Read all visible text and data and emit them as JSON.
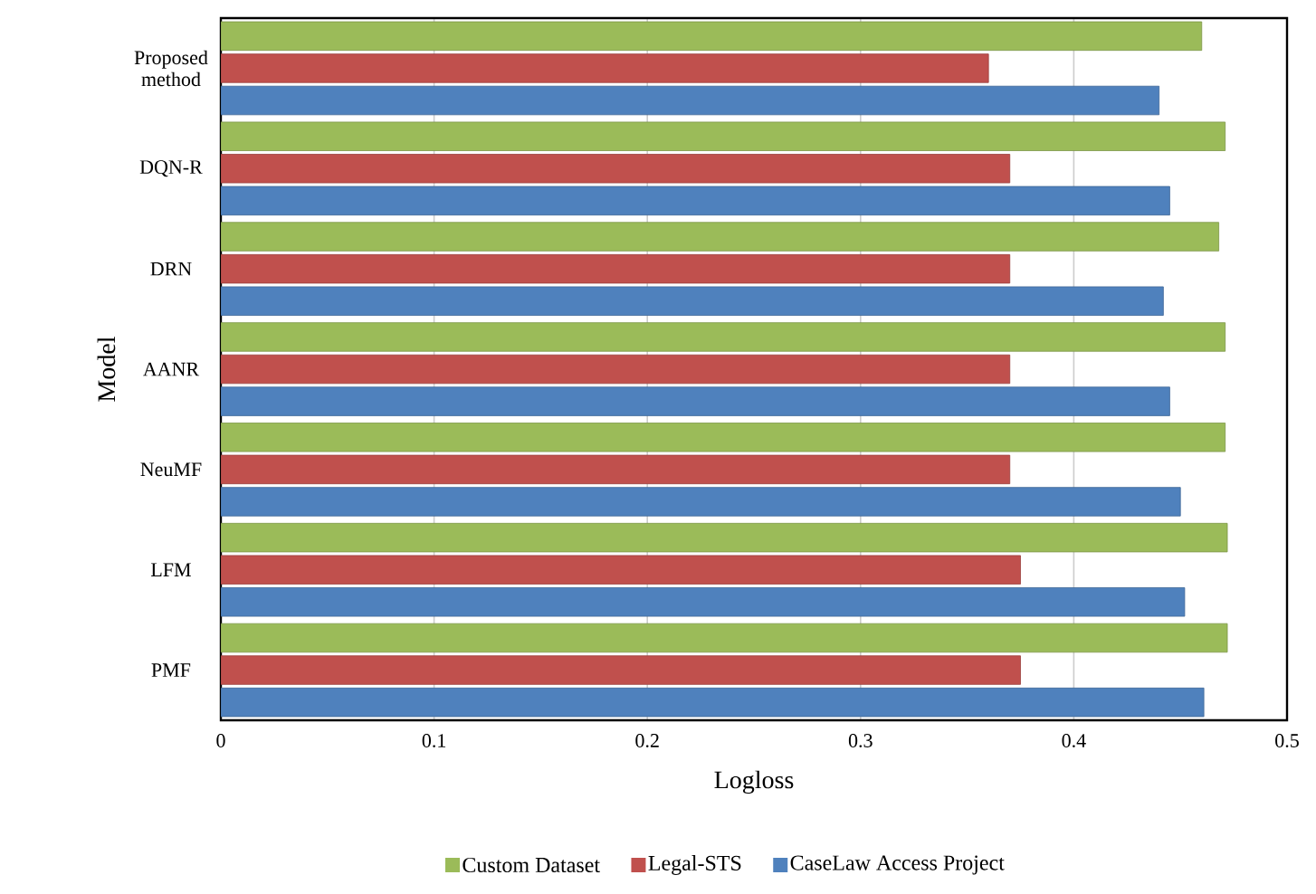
{
  "chart_data": {
    "type": "bar",
    "orientation": "horizontal",
    "xlabel": "Logloss",
    "ylabel": "Model",
    "categories": [
      "Proposed method",
      "DQN-R",
      "DRN",
      "AANR",
      "NeuMF",
      "LFM",
      "PMF"
    ],
    "series": [
      {
        "name": "Custom Dataset",
        "color": "#9bbb59",
        "values": [
          0.46,
          0.471,
          0.468,
          0.471,
          0.471,
          0.472,
          0.472
        ]
      },
      {
        "name": "Legal-STS",
        "color": "#c0504d",
        "values": [
          0.36,
          0.37,
          0.37,
          0.37,
          0.37,
          0.375,
          0.375
        ]
      },
      {
        "name": "CaseLaw Access Project",
        "color": "#4f81bd",
        "values": [
          0.44,
          0.445,
          0.442,
          0.445,
          0.45,
          0.452,
          0.461
        ]
      }
    ],
    "xlim": [
      0,
      0.5
    ],
    "xticks": [
      0,
      0.1,
      0.2,
      0.3,
      0.4,
      0.5
    ],
    "grid": "x",
    "legend": "bottom"
  }
}
